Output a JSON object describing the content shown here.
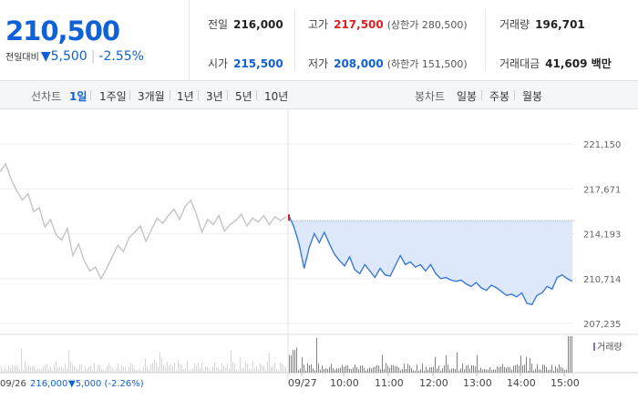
{
  "header": {
    "price": "210,500",
    "change_label": "전일대비",
    "change_arrow": "▼",
    "change_amount": "5,500",
    "change_rate": "-2.55%",
    "prev_close": {
      "label": "전일",
      "value": "216,000"
    },
    "high": {
      "label": "고가",
      "value": "217,500",
      "sub": "(상한가 280,500)"
    },
    "volume": {
      "label": "거래량",
      "value": "196,701"
    },
    "open": {
      "label": "시가",
      "value": "215,500"
    },
    "low": {
      "label": "저가",
      "value": "208,000",
      "sub": "(하한가 151,500)"
    },
    "amount": {
      "label": "거래대금",
      "value": "41,609 백만"
    }
  },
  "tabs": {
    "line_label": "선차트",
    "line_tabs": [
      "1일",
      "1주일",
      "3개월",
      "1년",
      "3년",
      "5년",
      "10년"
    ],
    "line_active": "1일",
    "candle_label": "봉차트",
    "candle_tabs": [
      "일봉",
      "주봉",
      "월봉"
    ]
  },
  "chart_data": {
    "type": "line",
    "y_ticks": [
      "221,150",
      "217,671",
      "214,193",
      "210,714",
      "207,235"
    ],
    "ylim": [
      207235,
      221150
    ],
    "x_labels": [
      "09/27",
      "10:00",
      "11:00",
      "12:00",
      "13:00",
      "14:00",
      "15:00"
    ],
    "prev_day_label": "09/26",
    "prev_day_price": "216,000",
    "prev_day_change": "▼5,000 (-2.26%)",
    "volume_legend": "거래량",
    "reference_price": 215200,
    "series": [
      {
        "values": [
          219000,
          219600,
          218400,
          217500,
          216800,
          217300,
          215900,
          216200,
          214700,
          215300,
          214100,
          213700,
          214600,
          212500,
          213400,
          212100,
          211300,
          211600,
          210700,
          211500,
          212400,
          213300,
          212800,
          213900,
          214300,
          214800,
          213600,
          214500,
          215400,
          215000,
          215600,
          216100,
          215300,
          216300,
          216800,
          215700,
          214300,
          215300,
          214900,
          215600,
          214400,
          214900,
          215200,
          215700,
          214800,
          215400,
          215100,
          215600,
          214900,
          215500,
          215200,
          215500
        ]
      },
      {
        "values": [
          215600,
          214700,
          213400,
          211500,
          213100,
          214200,
          213500,
          214300,
          213400,
          212600,
          212100,
          211700,
          212400,
          211400,
          211100,
          211800,
          211300,
          210800,
          211500,
          211000,
          210900,
          211700,
          212500,
          211800,
          212000,
          211600,
          211800,
          211300,
          211800,
          211100,
          210700,
          210800,
          210600,
          210500,
          210600,
          210300,
          210100,
          210400,
          210000,
          209800,
          210200,
          210000,
          209700,
          209400,
          209500,
          209300,
          209600,
          208800,
          208700,
          209400,
          209600,
          210100,
          209900,
          210800,
          211000,
          210700,
          210500
        ]
      }
    ]
  }
}
